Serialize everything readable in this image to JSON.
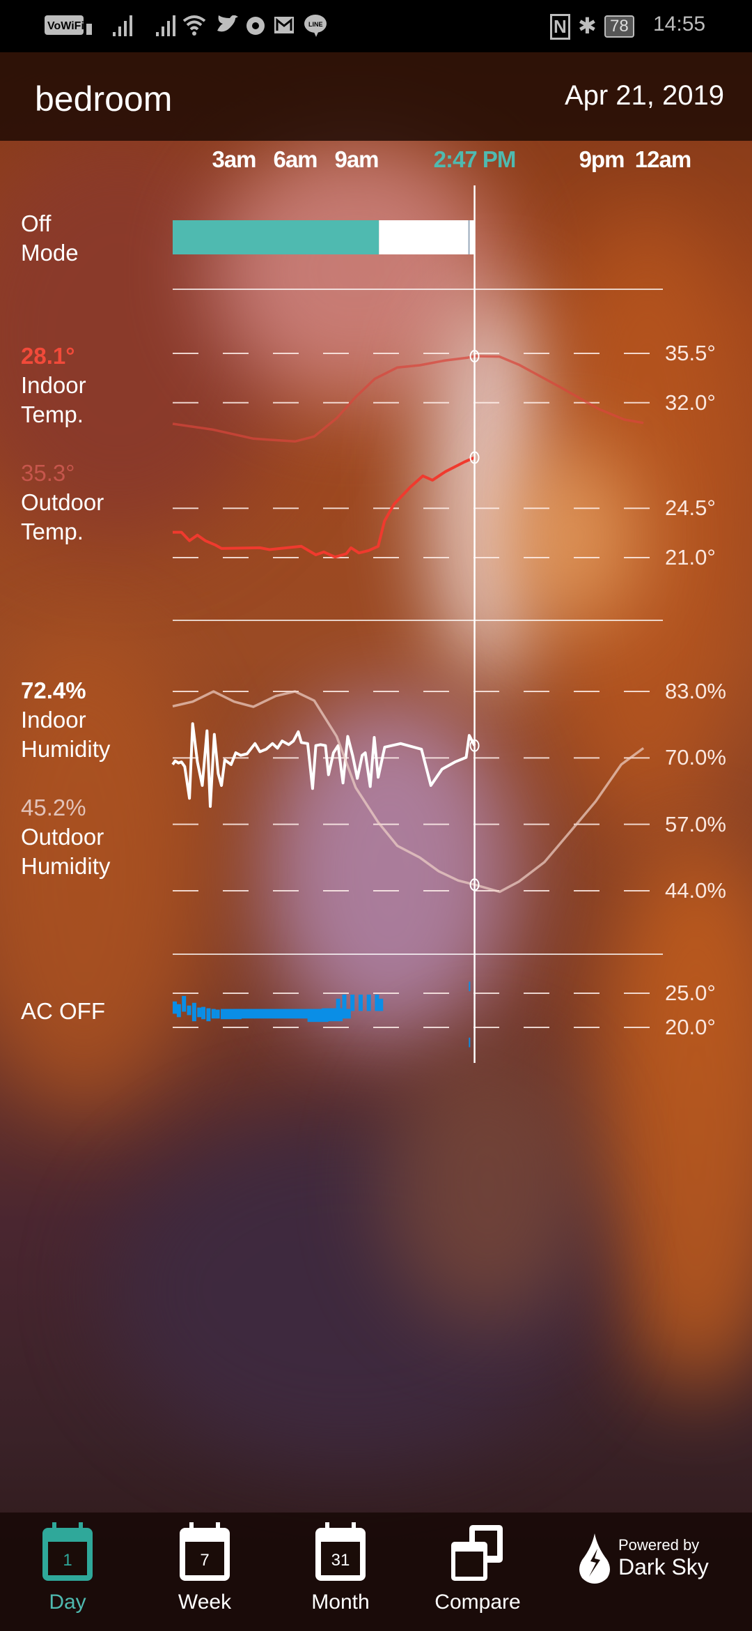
{
  "status_bar": {
    "left_icons": [
      "vowifi-icon",
      "signal-icon",
      "signal-icon",
      "wifi-icon",
      "twitter-icon",
      "chrome-icon",
      "gmail-icon",
      "line-icon"
    ],
    "vowifi": "VoWiFi",
    "line": "LINE",
    "nfc": "N",
    "battery": "78",
    "time": "14:55"
  },
  "header": {
    "title": "bedroom",
    "date": "Apr 21, 2019"
  },
  "timeline": {
    "labels": [
      {
        "text": "3am",
        "hour": 3
      },
      {
        "text": "6am",
        "hour": 6
      },
      {
        "text": "9am",
        "hour": 9
      },
      {
        "text": "2:47 PM",
        "hour": 14.78
      },
      {
        "text": "9pm",
        "hour": 21
      },
      {
        "text": "12am",
        "hour": 24
      }
    ],
    "cursor_hour": 14.78,
    "cursor_color": "#4fbab0",
    "range_hours": [
      0,
      24
    ]
  },
  "mode": {
    "state": "Off",
    "label": "Mode",
    "segments": [
      {
        "from": 0,
        "to": 10.1,
        "color": "#4fbab0"
      },
      {
        "from": 10.1,
        "to": 14.78,
        "color": "#ffffff"
      }
    ]
  },
  "chart_data": [
    {
      "type": "line",
      "name": "temperature",
      "ylim": [
        21.0,
        35.5
      ],
      "ticks": [
        35.5,
        32.0,
        24.5,
        21.0
      ],
      "tick_labels": [
        "35.5°",
        "32.0°",
        "24.5°",
        "21.0°"
      ],
      "series": [
        {
          "name": "Indoor Temp.",
          "current": "28.1°",
          "color": "#f03a2e",
          "points": [
            [
              0,
              22.8
            ],
            [
              0.43,
              22.8
            ],
            [
              0.82,
              22.2
            ],
            [
              1.21,
              22.6
            ],
            [
              1.6,
              22.2
            ],
            [
              2.08,
              21.9
            ],
            [
              2.39,
              21.65
            ],
            [
              4.27,
              21.7
            ],
            [
              4.74,
              21.57
            ],
            [
              6.3,
              21.8
            ],
            [
              7.01,
              21.2
            ],
            [
              7.4,
              21.4
            ],
            [
              7.95,
              21.04
            ],
            [
              8.5,
              21.27
            ],
            [
              8.73,
              21.7
            ],
            [
              9.12,
              21.33
            ],
            [
              9.59,
              21.5
            ],
            [
              10.06,
              21.8
            ],
            [
              10.37,
              23.6
            ],
            [
              10.84,
              24.8
            ],
            [
              11.63,
              26.0
            ],
            [
              12.25,
              26.8
            ],
            [
              12.72,
              26.5
            ],
            [
              13.35,
              27.1
            ],
            [
              14.29,
              27.8
            ],
            [
              14.78,
              28.1
            ]
          ]
        },
        {
          "name": "Outdoor Temp.",
          "current": "35.3°",
          "color": "#d8463c",
          "points": [
            [
              0,
              30.5
            ],
            [
              1.92,
              30.1
            ],
            [
              3.95,
              29.45
            ],
            [
              5.99,
              29.25
            ],
            [
              6.93,
              29.6
            ],
            [
              8.03,
              30.9
            ],
            [
              8.96,
              32.4
            ],
            [
              9.9,
              33.7
            ],
            [
              11.0,
              34.5
            ],
            [
              12.1,
              34.66
            ],
            [
              13.35,
              35.0
            ],
            [
              14.45,
              35.2
            ],
            [
              14.78,
              35.3
            ],
            [
              16.0,
              35.27
            ],
            [
              16.95,
              34.7
            ],
            [
              18.98,
              33.1
            ],
            [
              20.86,
              31.55
            ],
            [
              22.11,
              30.8
            ],
            [
              23.05,
              30.56
            ]
          ]
        }
      ]
    },
    {
      "type": "line",
      "name": "humidity",
      "ylim": [
        44.0,
        83.0
      ],
      "ticks": [
        83.0,
        70.0,
        57.0,
        44.0
      ],
      "tick_labels": [
        "83.0%",
        "70.0%",
        "57.0%",
        "44.0%"
      ],
      "series": [
        {
          "name": "Indoor Humidity",
          "current": "72.4%",
          "color": "#ffffff",
          "points": [
            [
              0,
              68.7
            ],
            [
              0.12,
              69.4
            ],
            [
              0.28,
              69.0
            ],
            [
              0.43,
              69.2
            ],
            [
              0.59,
              68.3
            ],
            [
              0.82,
              62.1
            ],
            [
              0.98,
              76.7
            ],
            [
              1.21,
              69.2
            ],
            [
              1.45,
              64.6
            ],
            [
              1.68,
              75.3
            ],
            [
              1.84,
              60.5
            ],
            [
              2.04,
              74.6
            ],
            [
              2.23,
              66.9
            ],
            [
              2.39,
              64.6
            ],
            [
              2.55,
              69.6
            ],
            [
              2.86,
              68.7
            ],
            [
              3.09,
              71.0
            ],
            [
              3.33,
              70.5
            ],
            [
              3.64,
              70.8
            ],
            [
              4.03,
              72.8
            ],
            [
              4.27,
              71.2
            ],
            [
              4.58,
              71.7
            ],
            [
              4.89,
              72.8
            ],
            [
              5.13,
              71.9
            ],
            [
              5.36,
              73.3
            ],
            [
              5.68,
              72.6
            ],
            [
              5.91,
              73.3
            ],
            [
              6.15,
              75.1
            ],
            [
              6.3,
              73.0
            ],
            [
              6.61,
              72.8
            ],
            [
              6.85,
              64.0
            ],
            [
              7.01,
              72.4
            ],
            [
              7.24,
              72.6
            ],
            [
              7.48,
              72.4
            ],
            [
              7.63,
              66.7
            ],
            [
              7.87,
              71.0
            ],
            [
              8.1,
              72.4
            ],
            [
              8.34,
              65.1
            ],
            [
              8.57,
              74.2
            ],
            [
              8.81,
              70.5
            ],
            [
              9.04,
              66.0
            ],
            [
              9.28,
              70.5
            ],
            [
              9.43,
              71.0
            ],
            [
              9.67,
              64.4
            ],
            [
              9.87,
              74.0
            ],
            [
              10.06,
              66.2
            ],
            [
              10.38,
              72.1
            ],
            [
              11.16,
              72.8
            ],
            [
              12.18,
              71.7
            ],
            [
              12.64,
              64.6
            ],
            [
              13.19,
              67.8
            ],
            [
              13.82,
              69.2
            ],
            [
              14.37,
              70.1
            ],
            [
              14.52,
              74.4
            ],
            [
              14.78,
              72.4
            ]
          ]
        },
        {
          "name": "Outdoor Humidity",
          "current": "45.2%",
          "color": "#f0d2c8",
          "points": [
            [
              0,
              80.1
            ],
            [
              0.98,
              81.0
            ],
            [
              2.0,
              83.0
            ],
            [
              3.01,
              81.0
            ],
            [
              3.95,
              80.0
            ],
            [
              5.05,
              82.1
            ],
            [
              5.99,
              83.0
            ],
            [
              6.93,
              81.2
            ],
            [
              8.03,
              74.2
            ],
            [
              8.96,
              64.2
            ],
            [
              10.06,
              57.4
            ],
            [
              11.0,
              52.8
            ],
            [
              12.1,
              50.5
            ],
            [
              13.03,
              47.8
            ],
            [
              13.98,
              46.0
            ],
            [
              14.78,
              45.2
            ],
            [
              16.01,
              43.8
            ],
            [
              16.95,
              45.8
            ],
            [
              18.2,
              49.6
            ],
            [
              19.45,
              55.5
            ],
            [
              20.71,
              61.5
            ],
            [
              21.96,
              68.7
            ],
            [
              23.05,
              71.9
            ]
          ]
        }
      ]
    },
    {
      "type": "bar",
      "name": "ac",
      "ylim": [
        20.0,
        25.0
      ],
      "ticks": [
        25.0,
        20.0
      ],
      "tick_labels": [
        "25.0°",
        "20.0°"
      ],
      "label": "AC OFF",
      "color": "#0a8ee6",
      "ranges": [
        [
          0,
          22.0,
          23.8
        ],
        [
          0.2,
          21.5,
          23.4
        ],
        [
          0.45,
          22.3,
          24.6
        ],
        [
          0.7,
          21.8,
          23.2
        ],
        [
          0.95,
          20.9,
          23.6
        ],
        [
          1.2,
          21.5,
          22.9
        ],
        [
          1.4,
          21.2,
          23.0
        ],
        [
          1.65,
          20.9,
          22.8
        ],
        [
          1.9,
          21.3,
          22.7
        ],
        [
          2.1,
          21.3,
          22.6
        ],
        [
          2.35,
          21.2,
          22.7
        ],
        [
          3,
          21.3,
          22.7
        ],
        [
          4,
          21.3,
          22.7
        ],
        [
          5,
          21.3,
          22.7
        ],
        [
          6,
          21.3,
          22.7
        ],
        [
          6.6,
          20.8,
          22.7
        ],
        [
          7.1,
          21.3,
          22.7
        ],
        [
          7.3,
          20.9,
          22.8
        ],
        [
          7.7,
          21.3,
          22.7
        ],
        [
          8.0,
          22.4,
          24.2
        ],
        [
          8.3,
          22.4,
          24.8
        ],
        [
          8.7,
          22.4,
          24.8
        ],
        [
          9.1,
          22.4,
          24.8
        ],
        [
          9.5,
          22.4,
          24.8
        ],
        [
          9.9,
          22.4,
          24.8
        ],
        [
          10.1,
          22.4,
          24.2
        ],
        [
          14.5,
          25.3,
          26.7
        ],
        [
          14.5,
          17.1,
          18.5
        ]
      ]
    }
  ],
  "nav": {
    "items": [
      {
        "label": "Day",
        "number": "1",
        "active": true
      },
      {
        "label": "Week",
        "number": "7",
        "active": false
      },
      {
        "label": "Month",
        "number": "31",
        "active": false
      },
      {
        "label": "Compare",
        "number": "",
        "active": false
      }
    ],
    "powered_by": "Powered by",
    "brand": "Dark Sky",
    "active_color": "#2fa89a"
  }
}
